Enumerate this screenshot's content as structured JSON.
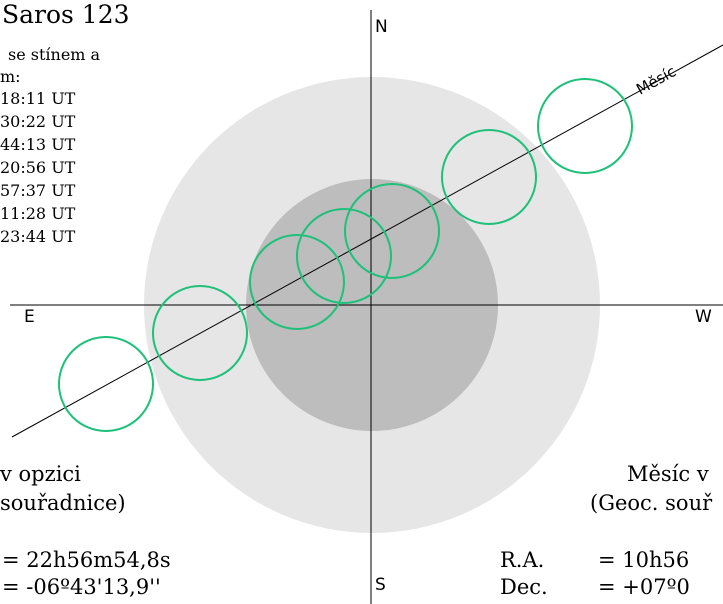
{
  "title": "Saros 123",
  "contacts": {
    "heading_line1": "se stínem a",
    "heading_line2": "m:",
    "times": [
      "18:11 UT",
      "30:22 UT",
      "44:13 UT",
      "20:56 UT",
      "57:37 UT",
      "11:28 UT",
      "23:44 UT"
    ]
  },
  "compass": {
    "north": "N",
    "south": "S",
    "east": "E",
    "west": "W"
  },
  "moon_path_label": "Měsíc",
  "sun_block": {
    "heading": "v opzici",
    "subheading": "souřadnice)",
    "ra_value": "= 22h56m54,8s",
    "dec_value": "= -06º43'13,9''"
  },
  "moon_block": {
    "heading": "Měsíc v",
    "subheading": "(Geoc. souř",
    "ra_label": "R.A.",
    "ra_value": "= 10h56",
    "dec_label": "Dec.",
    "dec_value": "= +07º0"
  },
  "colors": {
    "penumbra": "#e6e6e6",
    "umbra": "#bdbdbd",
    "moon_outline": "#1ec07a",
    "axes": "#000000"
  },
  "moon_positions_count": 7
}
